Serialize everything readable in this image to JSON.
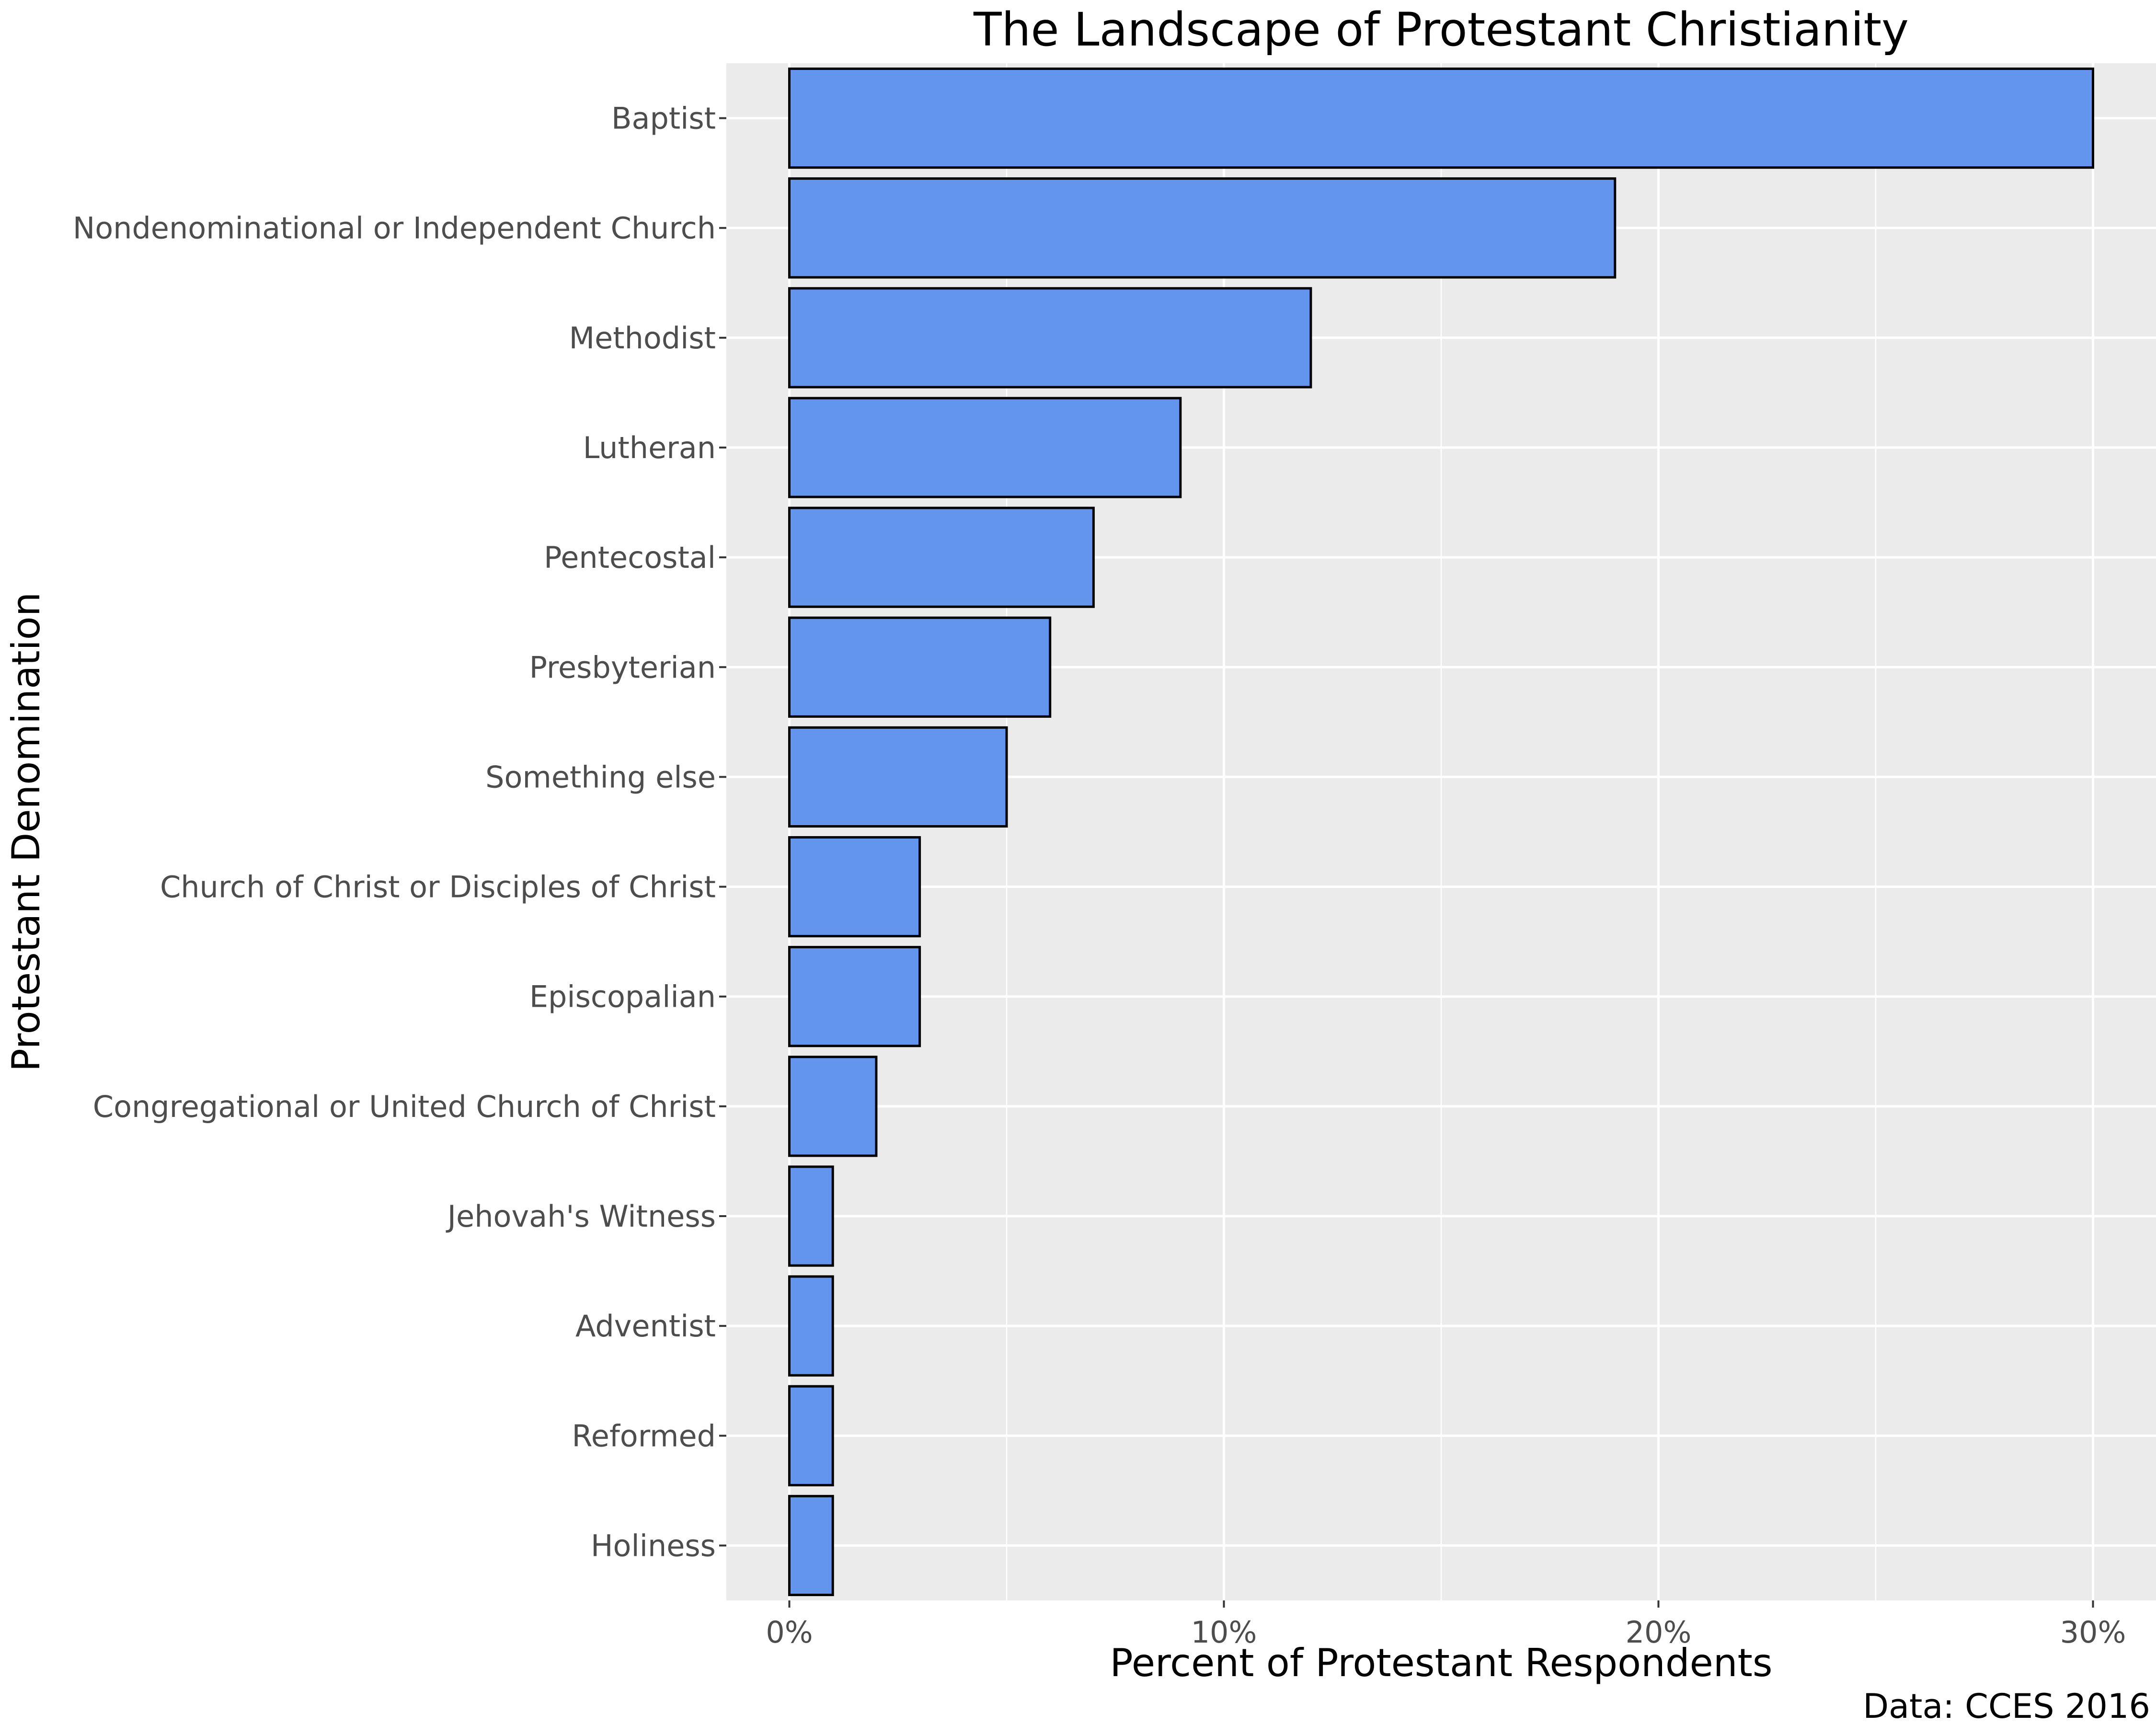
{
  "chart_data": {
    "type": "bar",
    "orientation": "horizontal",
    "title": "The Landscape of Protestant Christianity",
    "xlabel": "Percent of Protestant Respondents",
    "ylabel": "Protestant Denomination",
    "caption": "Data: CCES 2016",
    "categories": [
      "Baptist",
      "Nondenominational or Independent Church",
      "Methodist",
      "Lutheran",
      "Pentecostal",
      "Presbyterian",
      "Something else",
      "Church of Christ or Disciples of Christ",
      "Episcopalian",
      "Congregational or United Church of Christ",
      "Jehovah's Witness",
      "Adventist",
      "Reformed",
      "Holiness"
    ],
    "values": [
      30,
      19,
      12,
      9,
      7,
      6,
      5,
      3,
      3,
      2,
      1,
      1,
      1,
      1
    ],
    "xlim": [
      -1.45,
      31.45
    ],
    "xticks": [
      0,
      10,
      20,
      30
    ],
    "xtick_labels": [
      "0%",
      "10%",
      "20%",
      "30%"
    ],
    "grid": true,
    "legend": "none",
    "colors": {
      "bar_fill": "#6495ED",
      "bar_stroke": "#000000",
      "panel_background": "#EBEBEB",
      "grid_major": "#FFFFFF",
      "grid_minor": "#F5F5F5",
      "tick_text": "#4D4D4D",
      "text": "#000000"
    }
  }
}
